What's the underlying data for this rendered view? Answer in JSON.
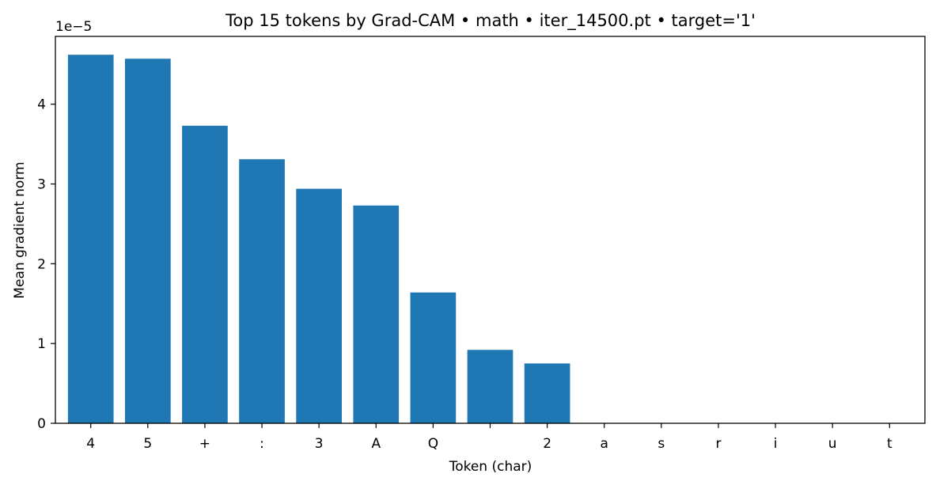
{
  "chart_data": {
    "type": "bar",
    "title": "Top 15 tokens by Grad-CAM • math • iter_14500.pt • target='1'",
    "xlabel": "Token (char)",
    "ylabel": "Mean gradient norm",
    "y_offset_label": "1e−5",
    "categories": [
      "4",
      "5",
      "+",
      ":",
      "3",
      "A",
      "Q",
      " ",
      "2",
      "a",
      "s",
      "r",
      "i",
      "u",
      "t"
    ],
    "values": [
      4.62,
      4.57,
      3.73,
      3.31,
      2.94,
      2.73,
      1.64,
      0.92,
      0.75,
      0,
      0,
      0,
      0,
      0,
      0
    ],
    "value_scale": 1e-05,
    "ylim": [
      0,
      4.85
    ],
    "yticks": [
      "0",
      "1",
      "2",
      "3",
      "4"
    ],
    "color": "#1f77b4",
    "grid": false,
    "legend": false
  }
}
